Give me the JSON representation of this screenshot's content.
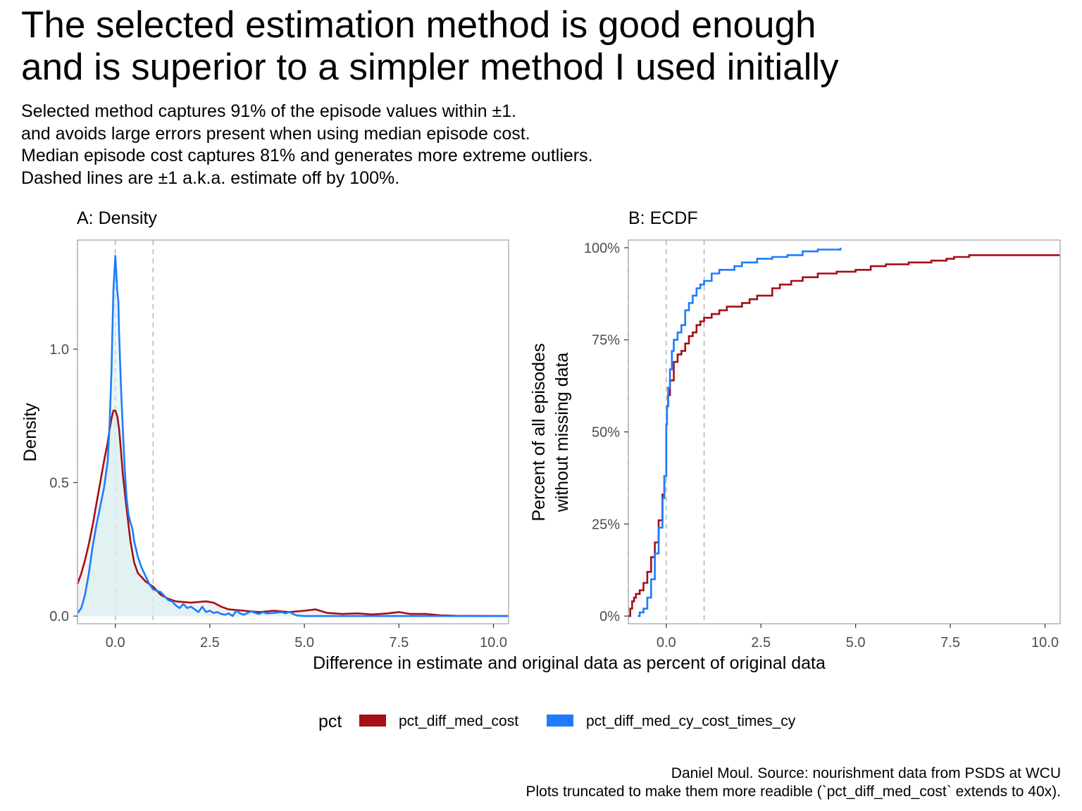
{
  "title_lines": [
    "The selected estimation method is good enough",
    "and is superior to a simpler method I used initially"
  ],
  "subtitle_lines": [
    "Selected method captures 91% of the episode values within ±1.",
    "and avoids large errors present when using median episode cost.",
    "Median episode cost captures 81% and generates more extreme outliers.",
    "Dashed lines are ±1 a.k.a. estimate off by 100%."
  ],
  "shared_xlabel": "Difference in estimate and original data as percent of original data",
  "legend": {
    "title": "pct",
    "position": "bottom",
    "items": [
      {
        "label": "pct_diff_med_cost",
        "color": "#A50F15"
      },
      {
        "label": "pct_diff_med_cy_cost_times_cy",
        "color": "#1E7BFF"
      }
    ]
  },
  "caption_lines": [
    "Daniel Moul. Source: nourishment data from PSDS at WCU",
    "Plots truncated to make them more readible (`pct_diff_med_cost` extends to 40x)."
  ],
  "colors": {
    "med_cost": "#A50F15",
    "cy_cost": "#1E7BFF",
    "area_fill": "#E8E8E8",
    "panel_border": "#B3B3B3",
    "reference_line": "#B3B3B3"
  },
  "chart_data": [
    {
      "type": "area",
      "panel_title": "A: Density",
      "ylabel": "Density",
      "xlim": [
        -1.0,
        10.4
      ],
      "ylim": [
        0,
        1.38
      ],
      "x_ticks": [
        0.0,
        2.5,
        5.0,
        7.5,
        10.0
      ],
      "x_tick_labels": [
        "0.0",
        "2.5",
        "5.0",
        "7.5",
        "10.0"
      ],
      "y_ticks": [
        0.0,
        0.5,
        1.0
      ],
      "y_tick_labels": [
        "0.0",
        "0.5",
        "1.0"
      ],
      "reference_lines_x": [
        -1,
        0,
        1
      ],
      "grid": false,
      "series": [
        {
          "name": "pct_diff_med_cost",
          "color": "#A50F15",
          "points": [
            [
              -1.0,
              0.12
            ],
            [
              -0.9,
              0.16
            ],
            [
              -0.8,
              0.21
            ],
            [
              -0.7,
              0.27
            ],
            [
              -0.6,
              0.34
            ],
            [
              -0.5,
              0.42
            ],
            [
              -0.4,
              0.5
            ],
            [
              -0.3,
              0.58
            ],
            [
              -0.2,
              0.65
            ],
            [
              -0.15,
              0.7
            ],
            [
              -0.1,
              0.74
            ],
            [
              -0.05,
              0.77
            ],
            [
              0.0,
              0.77
            ],
            [
              0.05,
              0.75
            ],
            [
              0.1,
              0.7
            ],
            [
              0.15,
              0.62
            ],
            [
              0.2,
              0.53
            ],
            [
              0.3,
              0.4
            ],
            [
              0.4,
              0.28
            ],
            [
              0.5,
              0.2
            ],
            [
              0.6,
              0.16
            ],
            [
              0.8,
              0.13
            ],
            [
              1.0,
              0.11
            ],
            [
              1.2,
              0.08
            ],
            [
              1.4,
              0.065
            ],
            [
              1.6,
              0.055
            ],
            [
              2.0,
              0.05
            ],
            [
              2.4,
              0.055
            ],
            [
              2.6,
              0.05
            ],
            [
              2.8,
              0.035
            ],
            [
              3.0,
              0.025
            ],
            [
              3.4,
              0.02
            ],
            [
              3.8,
              0.015
            ],
            [
              4.2,
              0.02
            ],
            [
              4.6,
              0.015
            ],
            [
              5.0,
              0.02
            ],
            [
              5.3,
              0.025
            ],
            [
              5.6,
              0.012
            ],
            [
              6.0,
              0.008
            ],
            [
              6.4,
              0.01
            ],
            [
              6.8,
              0.006
            ],
            [
              7.2,
              0.01
            ],
            [
              7.5,
              0.015
            ],
            [
              7.8,
              0.008
            ],
            [
              8.2,
              0.008
            ],
            [
              8.6,
              0.003
            ],
            [
              9.0,
              0.001
            ],
            [
              10.4,
              0.0
            ]
          ]
        },
        {
          "name": "pct_diff_med_cy_cost_times_cy",
          "color": "#1E7BFF",
          "points": [
            [
              -1.0,
              0.01
            ],
            [
              -0.9,
              0.03
            ],
            [
              -0.8,
              0.08
            ],
            [
              -0.7,
              0.16
            ],
            [
              -0.6,
              0.26
            ],
            [
              -0.5,
              0.34
            ],
            [
              -0.4,
              0.41
            ],
            [
              -0.3,
              0.48
            ],
            [
              -0.2,
              0.58
            ],
            [
              -0.15,
              0.72
            ],
            [
              -0.1,
              0.92
            ],
            [
              -0.08,
              1.05
            ],
            [
              -0.05,
              1.22
            ],
            [
              -0.02,
              1.3
            ],
            [
              0.0,
              1.35
            ],
            [
              0.02,
              1.3
            ],
            [
              0.05,
              1.22
            ],
            [
              0.08,
              1.18
            ],
            [
              0.1,
              1.06
            ],
            [
              0.15,
              0.86
            ],
            [
              0.2,
              0.7
            ],
            [
              0.25,
              0.55
            ],
            [
              0.3,
              0.44
            ],
            [
              0.35,
              0.38
            ],
            [
              0.4,
              0.35
            ],
            [
              0.45,
              0.33
            ],
            [
              0.5,
              0.28
            ],
            [
              0.6,
              0.22
            ],
            [
              0.7,
              0.18
            ],
            [
              0.8,
              0.15
            ],
            [
              0.9,
              0.12
            ],
            [
              1.0,
              0.1
            ],
            [
              1.1,
              0.095
            ],
            [
              1.2,
              0.09
            ],
            [
              1.3,
              0.075
            ],
            [
              1.4,
              0.06
            ],
            [
              1.5,
              0.055
            ],
            [
              1.6,
              0.04
            ],
            [
              1.7,
              0.03
            ],
            [
              1.8,
              0.045
            ],
            [
              1.9,
              0.03
            ],
            [
              2.0,
              0.035
            ],
            [
              2.1,
              0.025
            ],
            [
              2.2,
              0.015
            ],
            [
              2.3,
              0.035
            ],
            [
              2.4,
              0.015
            ],
            [
              2.5,
              0.02
            ],
            [
              2.6,
              0.012
            ],
            [
              2.7,
              0.015
            ],
            [
              2.8,
              0.008
            ],
            [
              2.9,
              0.005
            ],
            [
              3.0,
              0.01
            ],
            [
              3.1,
              0.0
            ],
            [
              3.2,
              0.02
            ],
            [
              3.3,
              0.01
            ],
            [
              3.4,
              0.005
            ],
            [
              3.5,
              0.012
            ],
            [
              3.6,
              0.018
            ],
            [
              3.7,
              0.012
            ],
            [
              3.8,
              0.008
            ],
            [
              3.9,
              0.015
            ],
            [
              4.0,
              0.01
            ],
            [
              4.2,
              0.012
            ],
            [
              4.4,
              0.015
            ],
            [
              4.5,
              0.01
            ],
            [
              4.6,
              0.016
            ],
            [
              4.7,
              0.008
            ],
            [
              4.8,
              0.002
            ],
            [
              5.0,
              0.0
            ],
            [
              10.4,
              0.0
            ]
          ]
        }
      ]
    },
    {
      "type": "line",
      "panel_title": "B: ECDF",
      "ylabel_lines": [
        "Percent of all episodes",
        "without missing data"
      ],
      "xlim": [
        -1.0,
        10.4
      ],
      "ylim": [
        0,
        1
      ],
      "x_ticks": [
        0.0,
        2.5,
        5.0,
        7.5,
        10.0
      ],
      "x_tick_labels": [
        "0.0",
        "2.5",
        "5.0",
        "7.5",
        "10.0"
      ],
      "y_ticks": [
        0,
        0.25,
        0.5,
        0.75,
        1.0
      ],
      "y_tick_labels": [
        "0%",
        "25%",
        "50%",
        "75%",
        "100%"
      ],
      "reference_lines_x": [
        -1,
        0,
        1
      ],
      "grid": false,
      "series": [
        {
          "name": "pct_diff_med_cost",
          "color": "#A50F15",
          "points": [
            [
              -1.0,
              0.0
            ],
            [
              -0.95,
              0.02
            ],
            [
              -0.9,
              0.04
            ],
            [
              -0.85,
              0.05
            ],
            [
              -0.8,
              0.06
            ],
            [
              -0.7,
              0.07
            ],
            [
              -0.6,
              0.09
            ],
            [
              -0.5,
              0.12
            ],
            [
              -0.4,
              0.16
            ],
            [
              -0.3,
              0.2
            ],
            [
              -0.2,
              0.26
            ],
            [
              -0.1,
              0.33
            ],
            [
              -0.05,
              0.38
            ],
            [
              0.0,
              0.52
            ],
            [
              0.02,
              0.57
            ],
            [
              0.05,
              0.6
            ],
            [
              0.1,
              0.64
            ],
            [
              0.2,
              0.69
            ],
            [
              0.3,
              0.71
            ],
            [
              0.4,
              0.72
            ],
            [
              0.5,
              0.74
            ],
            [
              0.6,
              0.76
            ],
            [
              0.7,
              0.77
            ],
            [
              0.8,
              0.79
            ],
            [
              0.9,
              0.8
            ],
            [
              1.0,
              0.81
            ],
            [
              1.2,
              0.82
            ],
            [
              1.4,
              0.83
            ],
            [
              1.6,
              0.84
            ],
            [
              1.8,
              0.84
            ],
            [
              2.0,
              0.85
            ],
            [
              2.2,
              0.86
            ],
            [
              2.4,
              0.87
            ],
            [
              2.6,
              0.87
            ],
            [
              2.8,
              0.89
            ],
            [
              3.0,
              0.9
            ],
            [
              3.3,
              0.91
            ],
            [
              3.6,
              0.92
            ],
            [
              4.0,
              0.93
            ],
            [
              4.5,
              0.935
            ],
            [
              5.0,
              0.94
            ],
            [
              5.3,
              0.94
            ],
            [
              5.4,
              0.95
            ],
            [
              5.8,
              0.955
            ],
            [
              6.4,
              0.96
            ],
            [
              7.0,
              0.965
            ],
            [
              7.4,
              0.97
            ],
            [
              7.6,
              0.975
            ],
            [
              8.0,
              0.98
            ],
            [
              10.4,
              0.98
            ]
          ]
        },
        {
          "name": "pct_diff_med_cy_cost_times_cy",
          "color": "#1E7BFF",
          "points": [
            [
              -0.75,
              0.0
            ],
            [
              -0.7,
              0.01
            ],
            [
              -0.6,
              0.02
            ],
            [
              -0.5,
              0.05
            ],
            [
              -0.4,
              0.1
            ],
            [
              -0.3,
              0.17
            ],
            [
              -0.2,
              0.24
            ],
            [
              -0.1,
              0.32
            ],
            [
              -0.05,
              0.38
            ],
            [
              0.0,
              0.52
            ],
            [
              0.02,
              0.57
            ],
            [
              0.05,
              0.62
            ],
            [
              0.1,
              0.67
            ],
            [
              0.15,
              0.72
            ],
            [
              0.2,
              0.75
            ],
            [
              0.3,
              0.77
            ],
            [
              0.4,
              0.79
            ],
            [
              0.5,
              0.83
            ],
            [
              0.6,
              0.85
            ],
            [
              0.7,
              0.87
            ],
            [
              0.8,
              0.89
            ],
            [
              0.9,
              0.9
            ],
            [
              1.0,
              0.91
            ],
            [
              1.2,
              0.93
            ],
            [
              1.4,
              0.94
            ],
            [
              1.6,
              0.94
            ],
            [
              1.8,
              0.95
            ],
            [
              2.0,
              0.96
            ],
            [
              2.4,
              0.97
            ],
            [
              2.8,
              0.975
            ],
            [
              3.2,
              0.98
            ],
            [
              3.6,
              0.99
            ],
            [
              4.0,
              0.995
            ],
            [
              4.3,
              0.995
            ],
            [
              4.6,
              1.0
            ]
          ]
        }
      ]
    }
  ]
}
